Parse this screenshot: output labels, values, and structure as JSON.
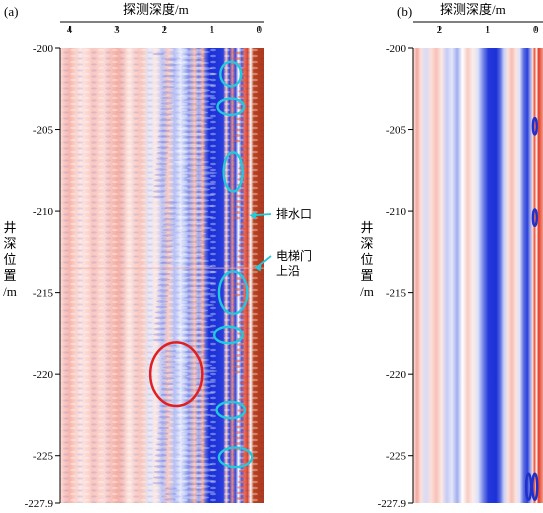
{
  "chart_data": [
    {
      "type": "heatmap",
      "panel_label": "(a)",
      "xlabel": "探测深度/m",
      "ylabel_chars": [
        "井",
        "深",
        "位",
        "置",
        "/m"
      ],
      "xlim": [
        4.2,
        -0.1
      ],
      "ylim": [
        -200,
        -227.9
      ],
      "x_ticks": [
        4,
        3,
        2,
        1,
        0
      ],
      "x_tick_labels": [
        "4",
        "3",
        "2",
        "1",
        "0"
      ],
      "y_ticks": [
        -200,
        -205,
        -210,
        -215,
        -220,
        -225,
        -227.9
      ],
      "y_tick_labels": [
        "-200",
        "-205",
        "-210",
        "-215",
        "-220",
        "-225",
        "-227.9"
      ],
      "colors": {
        "positive": "#e8614c",
        "negative": "#1c2fd8",
        "neutral": "#ffffff"
      },
      "annotations": [
        {
          "text": "排水口",
          "target": {
            "x": 0.2,
            "y": -210.2
          }
        },
        {
          "text": "电梯门",
          "text2": "上沿",
          "target": {
            "x": 0.1,
            "y": -213.4
          }
        }
      ],
      "marked_regions": [
        {
          "color": "#e02020",
          "cx": 1.75,
          "cy": -220.0,
          "rx": 0.55,
          "ry": 1.95
        },
        {
          "color": "#22c8dc",
          "cx": 0.6,
          "cy": -201.6,
          "rx": 0.22,
          "ry": 0.75
        },
        {
          "color": "#22c8dc",
          "cx": 0.6,
          "cy": -203.6,
          "rx": 0.28,
          "ry": 0.5
        },
        {
          "color": "#22c8dc",
          "cx": 0.55,
          "cy": -207.6,
          "rx": 0.2,
          "ry": 1.2
        },
        {
          "color": "#22c8dc",
          "cx": 0.55,
          "cy": -215.0,
          "rx": 0.3,
          "ry": 1.3
        },
        {
          "color": "#22c8dc",
          "cx": 0.65,
          "cy": -217.6,
          "rx": 0.3,
          "ry": 0.5
        },
        {
          "color": "#22c8dc",
          "cx": 0.6,
          "cy": -222.2,
          "rx": 0.3,
          "ry": 0.5
        },
        {
          "color": "#22c8dc",
          "cx": 0.5,
          "cy": -225.1,
          "rx": 0.35,
          "ry": 0.6
        }
      ]
    },
    {
      "type": "heatmap",
      "panel_label": "(b)",
      "xlabel": "探测深度/m",
      "ylabel_chars": [
        "井",
        "深",
        "位",
        "置",
        "/m"
      ],
      "xlim": [
        2.55,
        -0.15
      ],
      "ylim": [
        -200,
        -227.9
      ],
      "x_ticks": [
        2,
        1,
        0
      ],
      "x_tick_labels": [
        "2",
        "1",
        "0"
      ],
      "y_ticks": [
        -200,
        -205,
        -210,
        -215,
        -220,
        -225,
        -227.9
      ],
      "y_tick_labels": [
        "-200",
        "-205",
        "-210",
        "-215",
        "-220",
        "-225",
        "-227.9"
      ],
      "colors": {
        "positive": "#e8614c",
        "negative": "#1c2fd8",
        "neutral": "#ffffff"
      },
      "marked_regions": [
        {
          "color": "#2030c8",
          "cx": 0.02,
          "cy": -204.8,
          "rx": 0.04,
          "ry": 0.5
        },
        {
          "color": "#2030c8",
          "cx": 0.02,
          "cy": -210.4,
          "rx": 0.04,
          "ry": 0.5
        },
        {
          "color": "#2030c8",
          "cx": 0.15,
          "cy": -226.9,
          "rx": 0.05,
          "ry": 0.8
        },
        {
          "color": "#2030c8",
          "cx": 0.02,
          "cy": -226.9,
          "rx": 0.05,
          "ry": 0.8
        }
      ]
    }
  ]
}
